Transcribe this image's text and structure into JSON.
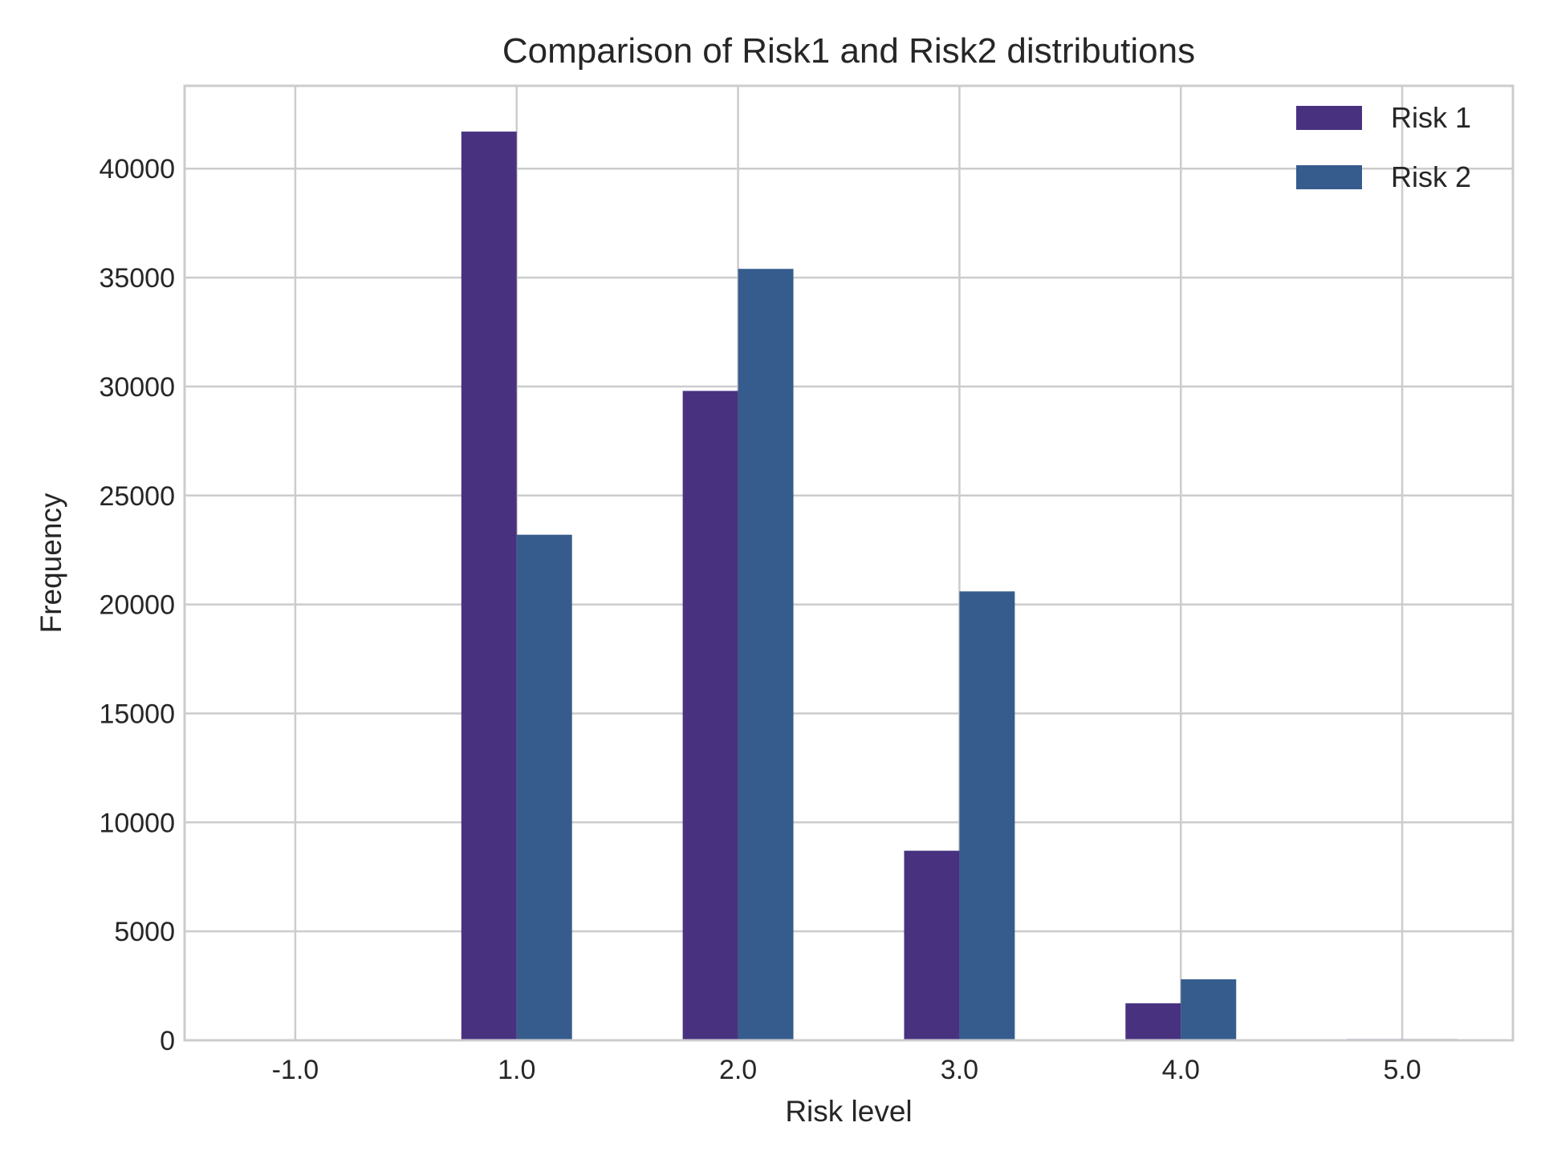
{
  "chart_data": {
    "type": "bar",
    "title": "Comparison of Risk1 and Risk2 distributions",
    "xlabel": "Risk level",
    "ylabel": "Frequency",
    "categories": [
      "-1.0",
      "1.0",
      "2.0",
      "3.0",
      "4.0",
      "5.0"
    ],
    "series": [
      {
        "name": "Risk 1",
        "color": "#483280",
        "values": [
          0,
          41700,
          29800,
          8700,
          1700,
          60
        ]
      },
      {
        "name": "Risk 2",
        "color": "#365c8d",
        "values": [
          0,
          23200,
          35400,
          20600,
          2800,
          60
        ]
      }
    ],
    "ylim": [
      0,
      43800
    ],
    "yticks": [
      0,
      5000,
      10000,
      15000,
      20000,
      25000,
      30000,
      35000,
      40000
    ],
    "grid": true,
    "legend": "top-right"
  }
}
